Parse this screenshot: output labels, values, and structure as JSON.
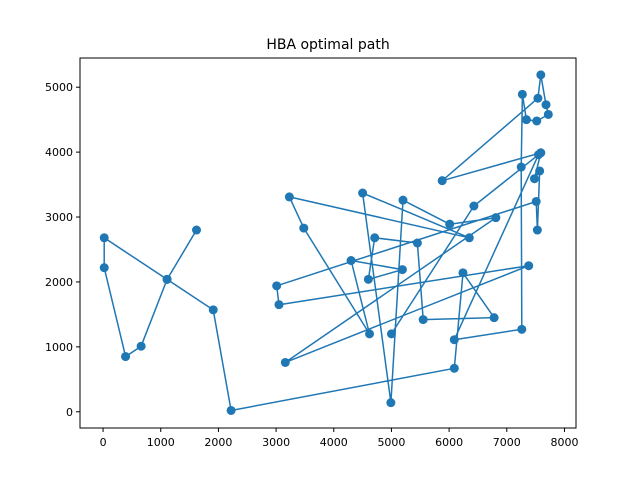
{
  "chart_data": {
    "type": "line",
    "title": "HBA optimal path",
    "xlabel": "",
    "ylabel": "",
    "xlim": [
      -400,
      8200
    ],
    "ylim": [
      -250,
      5450
    ],
    "xticks": [
      0,
      1000,
      2000,
      3000,
      4000,
      5000,
      6000,
      7000,
      8000
    ],
    "yticks": [
      0,
      1000,
      2000,
      3000,
      4000,
      5000
    ],
    "grid": false,
    "legend": "none",
    "marker": "circle",
    "series": [
      {
        "name": "",
        "color": "#1f77b4",
        "points": [
          [
            1620,
            2800
          ],
          [
            1110,
            2040
          ],
          [
            20,
            2680
          ],
          [
            20,
            2220
          ],
          [
            390,
            850
          ],
          [
            660,
            1010
          ],
          [
            1110,
            2040
          ],
          [
            1910,
            1570
          ],
          [
            2220,
            20
          ],
          [
            6090,
            670
          ],
          [
            6240,
            2140
          ],
          [
            6780,
            1450
          ],
          [
            5550,
            1420
          ],
          [
            5450,
            2600
          ],
          [
            4710,
            2680
          ],
          [
            4600,
            2040
          ],
          [
            5190,
            2190
          ],
          [
            4300,
            2330
          ],
          [
            4620,
            1200
          ],
          [
            3480,
            2830
          ],
          [
            3230,
            3310
          ],
          [
            6350,
            2680
          ],
          [
            4500,
            3370
          ],
          [
            4990,
            140
          ],
          [
            5200,
            3260
          ],
          [
            6010,
            2890
          ],
          [
            6810,
            2990
          ],
          [
            3160,
            760
          ],
          [
            7380,
            2250
          ],
          [
            3050,
            1650
          ],
          [
            3010,
            1940
          ],
          [
            7510,
            3240
          ],
          [
            7530,
            2800
          ],
          [
            7570,
            3710
          ],
          [
            7480,
            3590
          ],
          [
            7590,
            3990
          ],
          [
            5880,
            3560
          ],
          [
            7540,
            4830
          ],
          [
            7590,
            5190
          ],
          [
            7680,
            4730
          ],
          [
            7720,
            4580
          ],
          [
            7520,
            4480
          ],
          [
            7340,
            4500
          ],
          [
            7270,
            4890
          ],
          [
            7250,
            3770
          ],
          [
            7260,
            1270
          ],
          [
            6090,
            1110
          ],
          [
            7550,
            3960
          ],
          [
            6430,
            3170
          ],
          [
            5000,
            1200
          ]
        ]
      }
    ]
  }
}
